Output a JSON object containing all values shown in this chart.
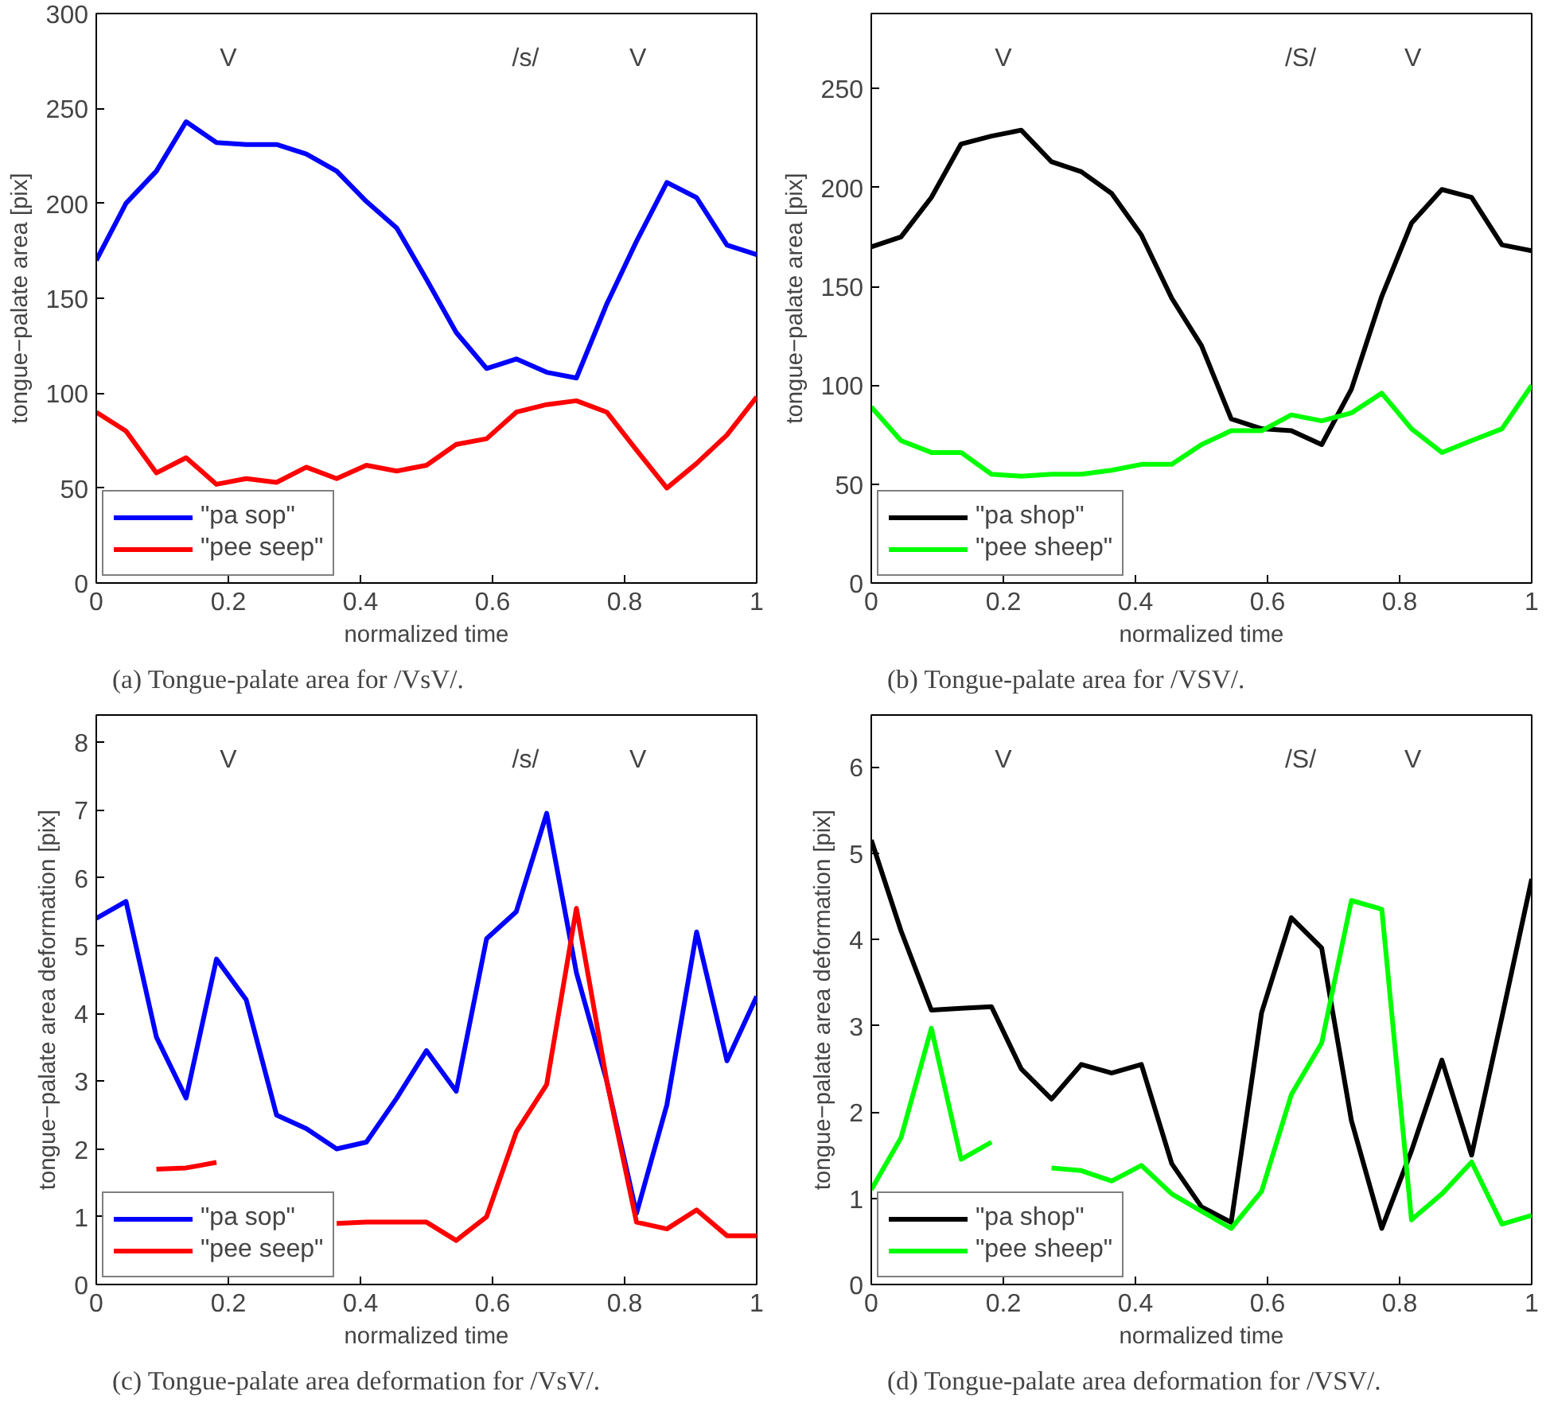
{
  "chart_data": [
    {
      "type": "line",
      "xlabel": "normalized time",
      "ylabel": "tongue−palate area [pix]",
      "x": [
        0,
        0.045,
        0.091,
        0.136,
        0.182,
        0.227,
        0.273,
        0.318,
        0.364,
        0.409,
        0.455,
        0.5,
        0.545,
        0.591,
        0.636,
        0.682,
        0.727,
        0.773,
        0.818,
        0.864,
        0.909,
        0.955,
        1
      ],
      "series": [
        {
          "name": "\"pa sop\"",
          "color": "#0000ff",
          "values": [
            170,
            200,
            217,
            243,
            232,
            231,
            231,
            226,
            217,
            201,
            187,
            160,
            132,
            113,
            118,
            111,
            108,
            147,
            180,
            211,
            203,
            178,
            173
          ]
        },
        {
          "name": "\"pee seep\"",
          "color": "#ff0000",
          "values": [
            90,
            80,
            58,
            66,
            52,
            55,
            53,
            61,
            55,
            62,
            59,
            62,
            73,
            76,
            90,
            94,
            96,
            90,
            70,
            50,
            63,
            78,
            98
          ]
        }
      ],
      "xlim": [
        0,
        1
      ],
      "xticks": [
        0,
        0.2,
        0.4,
        0.6,
        0.8,
        1
      ],
      "ylim": [
        0,
        300
      ],
      "yticks": [
        0,
        50,
        100,
        150,
        200,
        250,
        300
      ],
      "legend": "bottom left",
      "grid": false,
      "line_style": "solid",
      "marker": "none",
      "annotations": [
        "V",
        "/s/",
        "V",
        "(a)  Tongue-palate area for /VsV/."
      ]
    },
    {
      "type": "line",
      "xlabel": "normalized time",
      "ylabel": "tongue−palate area [pix]",
      "x": [
        0,
        0.045,
        0.091,
        0.136,
        0.182,
        0.227,
        0.273,
        0.318,
        0.364,
        0.409,
        0.455,
        0.5,
        0.545,
        0.591,
        0.636,
        0.682,
        0.727,
        0.773,
        0.818,
        0.864,
        0.909,
        0.955,
        1
      ],
      "series": [
        {
          "name": "\"pa shop\"",
          "color": "#000000",
          "values": [
            170,
            175,
            195,
            222,
            226,
            229,
            213,
            208,
            197,
            176,
            144,
            120,
            83,
            78,
            77,
            70,
            98,
            145,
            182,
            199,
            195,
            171,
            168
          ]
        },
        {
          "name": "\"pee sheep\"",
          "color": "#00ff00",
          "values": [
            89,
            72,
            66,
            66,
            55,
            54,
            55,
            55,
            57,
            60,
            60,
            70,
            77,
            77,
            85,
            82,
            86,
            96,
            78,
            66,
            72,
            78,
            100
          ]
        }
      ],
      "xlim": [
        0,
        1
      ],
      "xticks": [
        0,
        0.2,
        0.4,
        0.6,
        0.8,
        1
      ],
      "ylim": [
        0,
        288
      ],
      "yticks": [
        0,
        50,
        100,
        150,
        200,
        250
      ],
      "legend": "bottom left",
      "grid": false,
      "line_style": "solid",
      "marker": "none",
      "annotations": [
        "V",
        "/S/",
        "V",
        "(b)  Tongue-palate area for /VSV/."
      ]
    },
    {
      "type": "line",
      "xlabel": "normalized time",
      "ylabel": "tongue−palate area deformation [pix]",
      "x": [
        0,
        0.045,
        0.091,
        0.136,
        0.182,
        0.227,
        0.273,
        0.318,
        0.364,
        0.409,
        0.455,
        0.5,
        0.545,
        0.591,
        0.636,
        0.682,
        0.727,
        0.773,
        0.818,
        0.864,
        0.909,
        0.955,
        1
      ],
      "series": [
        {
          "name": "\"pa sop\"",
          "color": "#0000ff",
          "values": [
            5.4,
            5.65,
            3.65,
            2.75,
            4.8,
            4.2,
            2.5,
            2.3,
            2.0,
            2.1,
            2.75,
            3.45,
            2.85,
            5.1,
            5.5,
            6.95,
            4.6,
            3.0,
            1.05,
            2.65,
            5.2,
            3.3,
            4.25
          ]
        },
        {
          "name": "\"pee seep\"",
          "color": "#ff0000",
          "values": [
            null,
            null,
            1.7,
            1.72,
            1.8,
            null,
            null,
            null,
            0.9,
            0.92,
            0.92,
            0.92,
            0.65,
            1.0,
            2.25,
            2.95,
            5.55,
            3.0,
            0.92,
            0.82,
            1.1,
            0.72,
            0.72
          ]
        }
      ],
      "xlim": [
        0,
        1
      ],
      "xticks": [
        0,
        0.2,
        0.4,
        0.6,
        0.8,
        1
      ],
      "ylim": [
        0,
        8.4
      ],
      "yticks": [
        0,
        1,
        2,
        3,
        4,
        5,
        6,
        7,
        8
      ],
      "legend": "bottom left",
      "grid": false,
      "line_style": "solid",
      "marker": "none",
      "annotations": [
        "V",
        "/s/",
        "V",
        "(c)  Tongue-palate area deformation for /VsV/."
      ]
    },
    {
      "type": "line",
      "xlabel": "normalized time",
      "ylabel": "tongue−palate area deformation [pix]",
      "x": [
        0,
        0.045,
        0.091,
        0.136,
        0.182,
        0.227,
        0.273,
        0.318,
        0.364,
        0.409,
        0.455,
        0.5,
        0.545,
        0.591,
        0.636,
        0.682,
        0.727,
        0.773,
        0.818,
        0.864,
        0.909,
        0.955,
        1
      ],
      "series": [
        {
          "name": "\"pa shop\"",
          "color": "#000000",
          "values": [
            5.15,
            4.1,
            3.18,
            3.2,
            3.22,
            2.5,
            2.15,
            2.55,
            2.45,
            2.55,
            1.4,
            0.9,
            0.72,
            3.15,
            4.25,
            3.9,
            1.9,
            0.65,
            1.55,
            2.6,
            1.5,
            3.1,
            4.7
          ]
        },
        {
          "name": "\"pee sheep\"",
          "color": "#00ff00",
          "values": [
            1.1,
            1.7,
            2.97,
            1.45,
            1.65,
            null,
            1.35,
            1.32,
            1.2,
            1.38,
            1.05,
            0.85,
            0.65,
            1.08,
            2.2,
            2.8,
            4.45,
            4.35,
            0.75,
            1.05,
            1.42,
            0.7,
            0.8
          ]
        }
      ],
      "xlim": [
        0,
        1
      ],
      "xticks": [
        0,
        0.2,
        0.4,
        0.6,
        0.8,
        1
      ],
      "ylim": [
        0,
        6.6
      ],
      "yticks": [
        0,
        1,
        2,
        3,
        4,
        5,
        6
      ],
      "legend": "bottom left",
      "grid": false,
      "line_style": "solid",
      "marker": "none",
      "annotations": [
        "V",
        "/S/",
        "V",
        "(d)  Tongue-palate area deformation for /VSV/."
      ]
    }
  ]
}
